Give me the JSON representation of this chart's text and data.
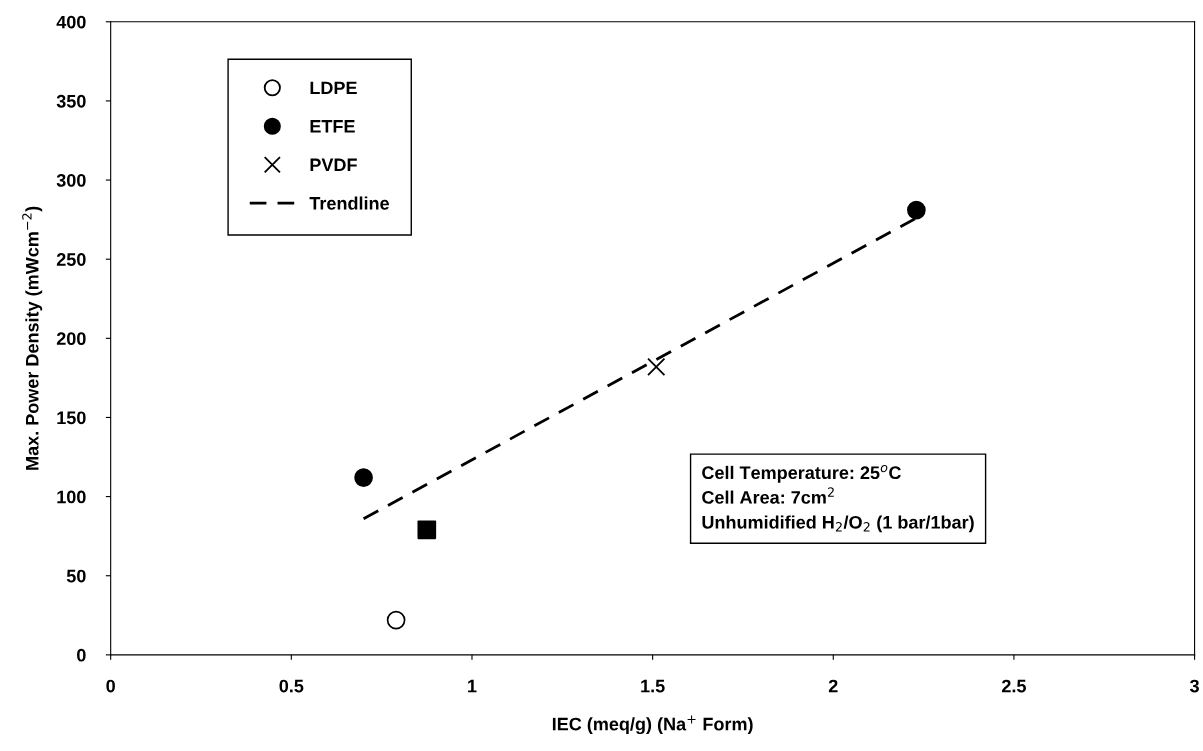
{
  "chart_data": {
    "type": "scatter",
    "xlabel": "IEC (meq/g) (Na$^{+}$ Form)",
    "ylabel": "Max. Power Density (mWcm$^{−2}$)",
    "xlim": [
      0,
      3
    ],
    "ylim": [
      0,
      400
    ],
    "xticks": [
      0,
      0.5,
      1,
      1.5,
      2,
      2.5,
      3
    ],
    "yticks": [
      0,
      50,
      100,
      150,
      200,
      250,
      300,
      350,
      400
    ],
    "grid": false,
    "legend": "top left",
    "series": [
      {
        "name": "LDPE",
        "color": "#000000",
        "marker": "open circle",
        "x": [
          0.79
        ],
        "values": [
          22
        ]
      },
      {
        "name": "ETFE",
        "color": "#000000",
        "marker": "circle",
        "x": [
          0.7,
          2.23
        ],
        "values": [
          112,
          281
        ]
      },
      {
        "name": "PVDF",
        "color": "#000000",
        "marker": "cross",
        "x": [
          1.51
        ],
        "values": [
          182
        ]
      },
      {
        "color": "#000000",
        "marker": "square",
        "x": [
          0.875
        ],
        "values": [
          79
        ]
      },
      {
        "name": "Trendline",
        "type": "line",
        "color": "#000000",
        "line_style": "dashed",
        "marker": "none",
        "x": [
          0.7,
          2.23
        ],
        "values": [
          86,
          276
        ]
      }
    ],
    "annotations": [
      "Cell Temperature: 25$^{o}$C\nCell Area: 7cm$^{2}$\nUnhumidified H$_{2}$/O$_{2}$ (1 bar/1bar)"
    ]
  }
}
